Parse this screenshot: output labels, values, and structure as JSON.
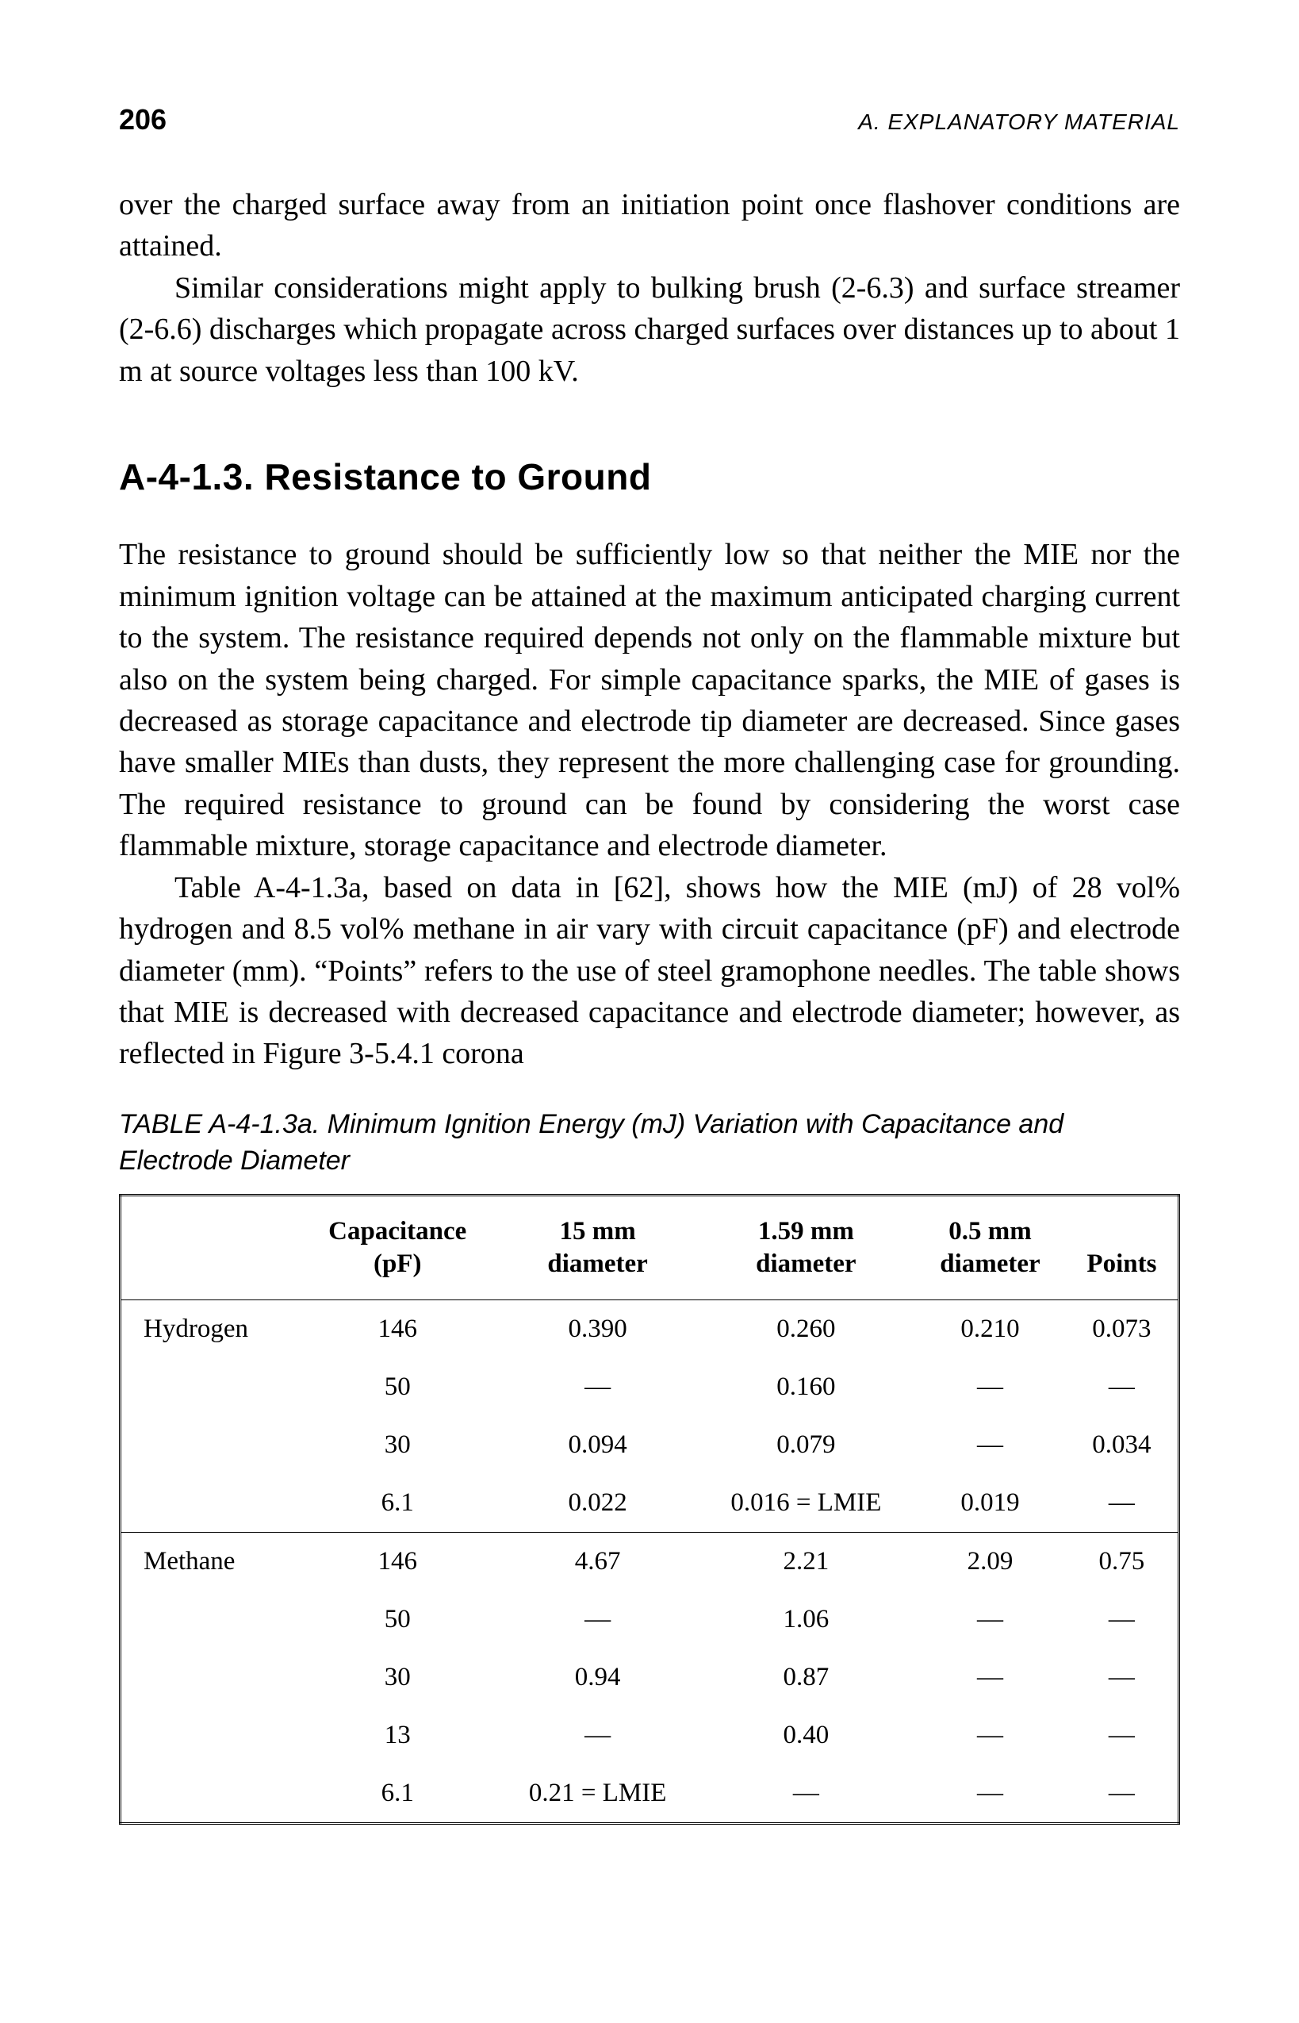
{
  "header": {
    "page_number": "206",
    "running_title": "A. EXPLANATORY MATERIAL"
  },
  "paragraphs": {
    "p1": "over the charged surface away from an initiation point once flashover conditions are attained.",
    "p2": "Similar considerations might apply to bulking brush (2-6.3) and surface streamer (2-6.6) discharges which propagate across charged surfaces over distances up to about 1 m at source voltages less than 100 kV.",
    "p3": "The resistance to ground should be sufficiently low so that neither the MIE nor the minimum ignition voltage can be attained at the maximum anticipated charging current to the system. The resistance required depends not only on the flammable mixture but also on the system being charged. For simple capacitance sparks, the MIE of gases is decreased as storage capacitance and electrode tip diameter are decreased. Since gases have smaller MIEs than dusts, they represent the more challenging case for grounding. The required resistance to ground can be found by considering the worst case flammable mixture, storage capacitance and electrode diameter.",
    "p4": "Table A-4-1.3a, based on data in [62], shows how the MIE (mJ) of 28 vol% hydrogen and 8.5 vol% methane in air vary with circuit capacitance (pF) and electrode diameter (mm). “Points” refers to the use of steel gramophone needles. The table shows that MIE is decreased with decreased capacitance and electrode diameter; however, as reflected in Figure 3-5.4.1 corona"
  },
  "section_heading": "A-4-1.3.  Resistance to Ground",
  "table": {
    "caption": "TABLE A-4-1.3a. Minimum Ignition Energy (mJ) Variation with Capacitance and Electrode Diameter",
    "columns": {
      "c0": "",
      "c1_l1": "Capacitance",
      "c1_l2": "(pF)",
      "c2_l1": "15 mm",
      "c2_l2": "diameter",
      "c3_l1": "1.59 mm",
      "c3_l2": "diameter",
      "c4_l1": "0.5 mm",
      "c4_l2": "diameter",
      "c5": "Points"
    },
    "rows": [
      {
        "label": "Hydrogen",
        "cap": "146",
        "d15": "0.390",
        "d159": "0.260",
        "d05": "0.210",
        "pts": "0.073",
        "group_start": false
      },
      {
        "label": "",
        "cap": "50",
        "d15": "—",
        "d159": "0.160",
        "d05": "—",
        "pts": "—",
        "group_start": false
      },
      {
        "label": "",
        "cap": "30",
        "d15": "0.094",
        "d159": "0.079",
        "d05": "—",
        "pts": "0.034",
        "group_start": false
      },
      {
        "label": "",
        "cap": "6.1",
        "d15": "0.022",
        "d159": "0.016 = LMIE",
        "d05": "0.019",
        "pts": "—",
        "group_start": false
      },
      {
        "label": "Methane",
        "cap": "146",
        "d15": "4.67",
        "d159": "2.21",
        "d05": "2.09",
        "pts": "0.75",
        "group_start": true
      },
      {
        "label": "",
        "cap": "50",
        "d15": "—",
        "d159": "1.06",
        "d05": "—",
        "pts": "—",
        "group_start": false
      },
      {
        "label": "",
        "cap": "30",
        "d15": "0.94",
        "d159": "0.87",
        "d05": "—",
        "pts": "—",
        "group_start": false
      },
      {
        "label": "",
        "cap": "13",
        "d15": "—",
        "d159": "0.40",
        "d05": "—",
        "pts": "—",
        "group_start": false
      },
      {
        "label": "",
        "cap": "6.1",
        "d15": "0.21 = LMIE",
        "d159": "—",
        "d05": "—",
        "pts": "—",
        "group_start": false
      }
    ]
  }
}
